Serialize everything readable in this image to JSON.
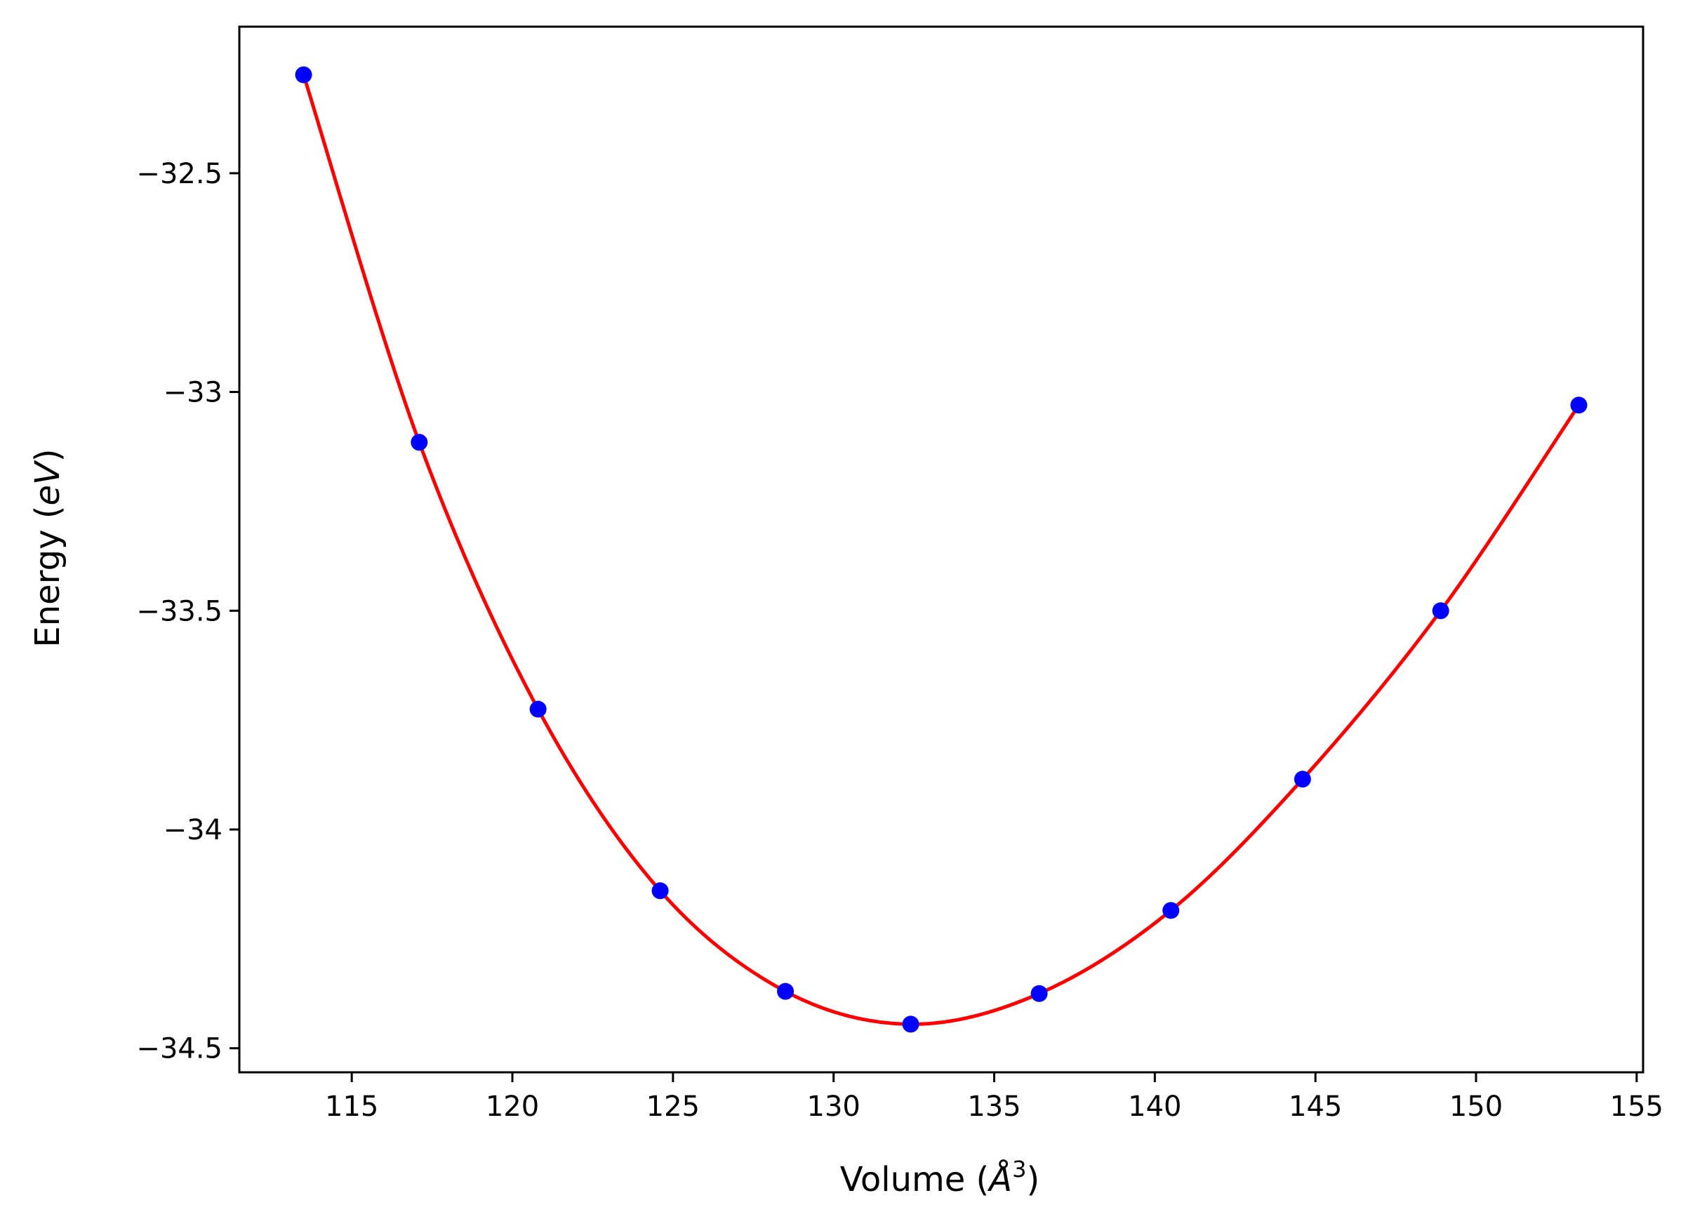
{
  "chart_data": {
    "type": "line",
    "title": "",
    "xlabel": "Volume",
    "xlabel_unit": "Å",
    "xlabel_unit_exp": "3",
    "ylabel": "Energy",
    "ylabel_unit": "eV",
    "xlim": [
      111.5,
      155.2
    ],
    "ylim": [
      -34.555,
      -32.165
    ],
    "x_ticks": [
      115,
      120,
      125,
      130,
      135,
      140,
      145,
      150,
      155
    ],
    "y_ticks": [
      -32.5,
      -33.0,
      -33.5,
      -34.0,
      -34.5
    ],
    "grid": false,
    "legend": "none",
    "series": [
      {
        "kind": "scatter",
        "color": "#0000ff",
        "x": [
          113.5,
          117.1,
          120.8,
          124.6,
          128.5,
          132.4,
          136.4,
          140.5,
          144.6,
          148.9,
          153.2
        ],
        "y": [
          -32.275,
          -33.115,
          -33.725,
          -34.14,
          -34.37,
          -34.445,
          -34.375,
          -34.185,
          -33.885,
          -33.5,
          -33.03
        ]
      },
      {
        "kind": "line",
        "color": "#ff0000",
        "x": [
          113.5,
          117.1,
          120.8,
          124.6,
          128.5,
          132.4,
          136.4,
          140.5,
          144.6,
          148.9,
          153.2
        ],
        "y": [
          -32.275,
          -33.115,
          -33.725,
          -34.14,
          -34.37,
          -34.445,
          -34.375,
          -34.185,
          -33.885,
          -33.5,
          -33.03
        ]
      }
    ]
  }
}
